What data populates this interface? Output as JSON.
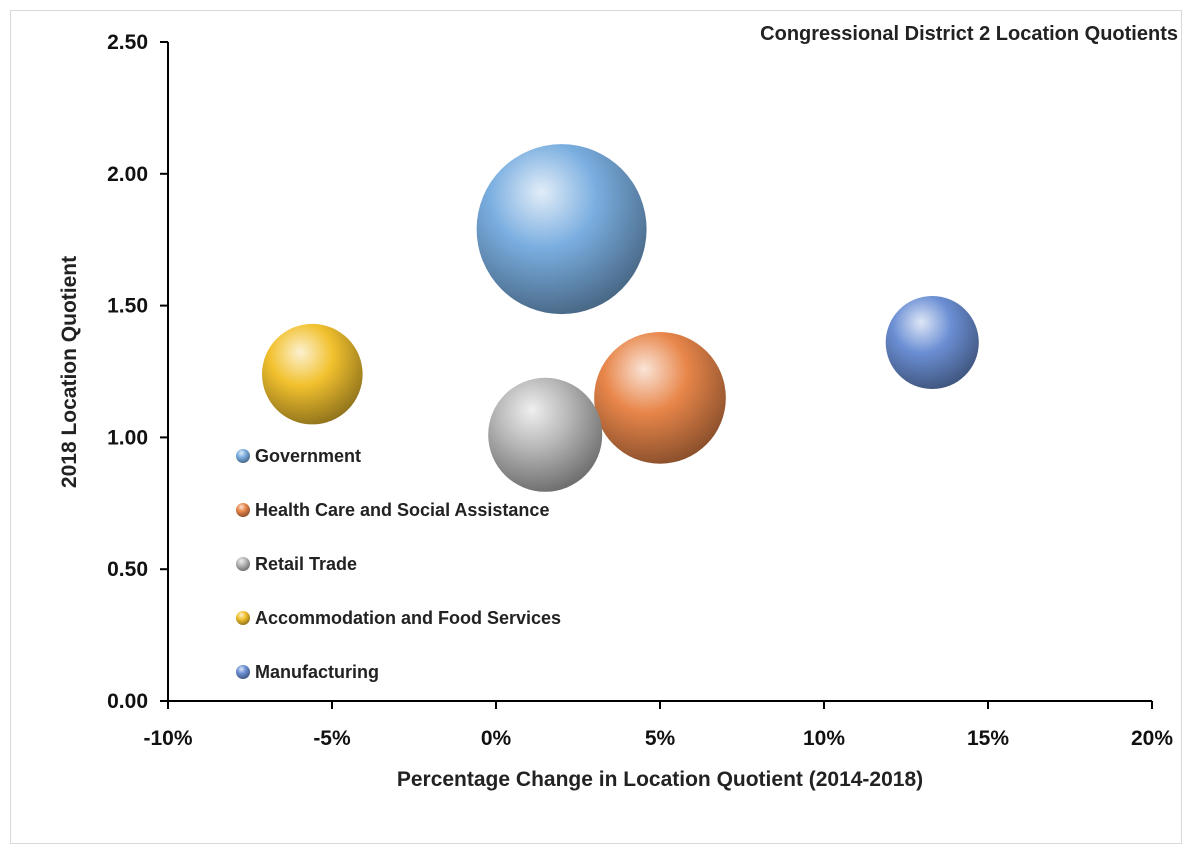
{
  "chart_data": {
    "type": "bubble",
    "title": "Congressional District 2 Location Quotients",
    "xlabel": "Percentage Change in Location Quotient (2014-2018)",
    "ylabel": "2018 Location Quotient",
    "xlim": [
      -10,
      20
    ],
    "ylim": [
      0,
      2.5
    ],
    "x_ticks": [
      {
        "value": -10,
        "label": "-10%"
      },
      {
        "value": -5,
        "label": "-5%"
      },
      {
        "value": 0,
        "label": "0%"
      },
      {
        "value": 5,
        "label": "5%"
      },
      {
        "value": 10,
        "label": "10%"
      },
      {
        "value": 15,
        "label": "15%"
      },
      {
        "value": 20,
        "label": "20%"
      }
    ],
    "y_ticks": [
      {
        "value": 0,
        "label": "0.00"
      },
      {
        "value": 0.5,
        "label": "0.50"
      },
      {
        "value": 1.0,
        "label": "1.00"
      },
      {
        "value": 1.5,
        "label": "1.50"
      },
      {
        "value": 2.0,
        "label": "2.00"
      },
      {
        "value": 2.5,
        "label": "2.50"
      }
    ],
    "grid": false,
    "legend_position": "left",
    "series": [
      {
        "name": "Government",
        "x": 2.0,
        "y": 1.79,
        "size": 2.0,
        "color": "#7aaee0"
      },
      {
        "name": "Health Care and Social Assistance",
        "x": 5.0,
        "y": 1.15,
        "size": 1.2,
        "color": "#e8864a"
      },
      {
        "name": "Retail Trade",
        "x": 1.5,
        "y": 1.01,
        "size": 0.9,
        "color": "#b8b8b8"
      },
      {
        "name": "Accommodation and Food Services",
        "x": -5.6,
        "y": 1.24,
        "size": 0.7,
        "color": "#f2c12e"
      },
      {
        "name": "Manufacturing",
        "x": 13.3,
        "y": 1.36,
        "size": 0.6,
        "color": "#6b8fd4"
      }
    ]
  }
}
